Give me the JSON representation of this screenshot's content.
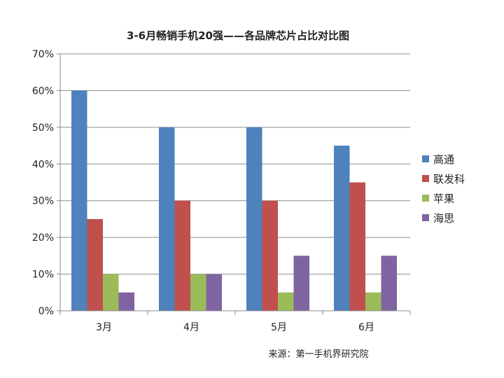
{
  "chart_data": {
    "type": "bar",
    "title": "3-6月畅销手机20强——各品牌芯片占比对比图",
    "categories": [
      "3月",
      "4月",
      "5月",
      "6月"
    ],
    "series": [
      {
        "name": "高通",
        "values": [
          60,
          50,
          50,
          45
        ],
        "color": "#4f81bd"
      },
      {
        "name": "联发科",
        "values": [
          25,
          30,
          30,
          35
        ],
        "color": "#c0504d"
      },
      {
        "name": "苹果",
        "values": [
          10,
          10,
          5,
          5
        ],
        "color": "#9bbb59"
      },
      {
        "name": "海思",
        "values": [
          5,
          10,
          15,
          15
        ],
        "color": "#8064a2"
      }
    ],
    "yticks": [
      "0%",
      "10%",
      "20%",
      "30%",
      "40%",
      "50%",
      "60%",
      "70%"
    ],
    "ylim": [
      0,
      70
    ],
    "grid": true,
    "legend": "right"
  },
  "source": "来源：第一手机界研究院"
}
